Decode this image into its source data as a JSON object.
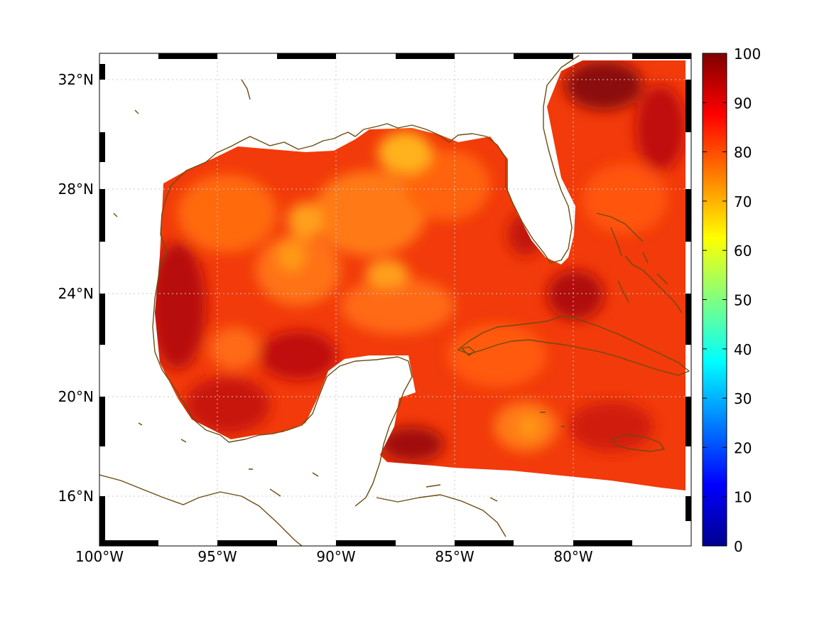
{
  "map": {
    "lon_range": [
      -100,
      -75.2
    ],
    "lat_range": [
      14.3,
      33.0
    ],
    "x_ticks": [
      {
        "lon": -100,
        "label": "100°W"
      },
      {
        "lon": -95,
        "label": "95°W"
      },
      {
        "lon": -90,
        "label": "90°W"
      },
      {
        "lon": -85,
        "label": "85°W"
      },
      {
        "lon": -80,
        "label": "80°W"
      }
    ],
    "y_ticks": [
      {
        "lat": 32,
        "label": "32°N"
      },
      {
        "lat": 28,
        "label": "28°N"
      },
      {
        "lat": 24,
        "label": "24°N"
      },
      {
        "lat": 20,
        "label": "20°N"
      },
      {
        "lat": 16,
        "label": "16°N"
      }
    ],
    "grid": "dotted",
    "coastline_color": "#6b4c10",
    "field_colormap": "jet",
    "field_value_range": [
      55,
      100
    ]
  },
  "colorbar": {
    "min": 0,
    "max": 100,
    "ticks": [
      {
        "value": 100,
        "label": "100"
      },
      {
        "value": 90,
        "label": "90"
      },
      {
        "value": 80,
        "label": "80"
      },
      {
        "value": 70,
        "label": "70"
      },
      {
        "value": 60,
        "label": "60"
      },
      {
        "value": 50,
        "label": "50"
      },
      {
        "value": 40,
        "label": "40"
      },
      {
        "value": 30,
        "label": "30"
      },
      {
        "value": 20,
        "label": "20"
      },
      {
        "value": 10,
        "label": "10"
      },
      {
        "value": 0,
        "label": "0"
      }
    ],
    "colormap": [
      "#00008f",
      "#0000ff",
      "#0080ff",
      "#00ffff",
      "#80ff80",
      "#ffff00",
      "#ff8000",
      "#ff0000",
      "#800000"
    ]
  }
}
